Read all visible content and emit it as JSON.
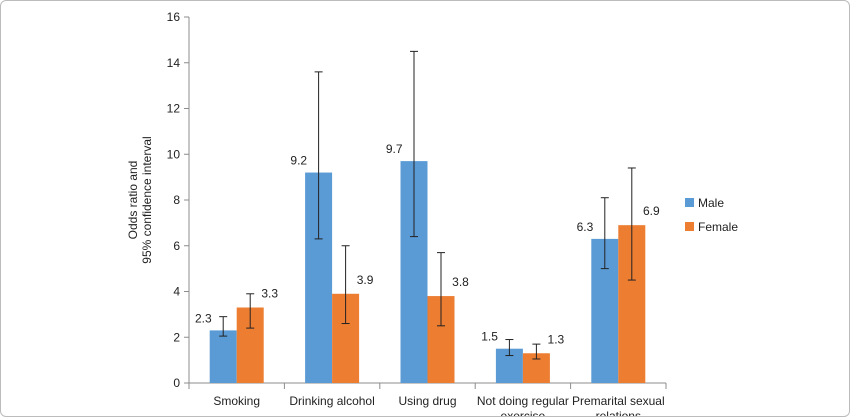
{
  "chart_data": {
    "type": "bar",
    "title": "",
    "ylabel": "Odds ratio and 95% confidence interval",
    "ylabel_lines": [
      "Odds ratio and",
      "95% confidence interval"
    ],
    "xlabel": "",
    "ylim": [
      0,
      16
    ],
    "yticks": [
      0,
      2,
      4,
      6,
      8,
      10,
      12,
      14,
      16
    ],
    "categories": [
      [
        "Smoking"
      ],
      [
        "Drinking alcohol"
      ],
      [
        "Using drug"
      ],
      [
        "Not doing regular",
        "exercise"
      ],
      [
        "Premarital sexual",
        "relations"
      ]
    ],
    "series": [
      {
        "name": "Male",
        "color": "#5b9bd5",
        "values": [
          2.3,
          9.2,
          9.7,
          1.5,
          6.3
        ],
        "ci_low": [
          2.05,
          6.3,
          6.4,
          1.2,
          5.0
        ],
        "ci_high": [
          2.9,
          13.6,
          14.5,
          1.9,
          8.1
        ]
      },
      {
        "name": "Female",
        "color": "#ed7d31",
        "values": [
          3.3,
          3.9,
          3.8,
          1.3,
          6.9
        ],
        "ci_low": [
          2.4,
          2.6,
          2.5,
          1.05,
          4.5
        ],
        "ci_high": [
          3.9,
          6.0,
          5.7,
          1.7,
          9.4
        ]
      }
    ],
    "legend": {
      "position": "right"
    },
    "grid": false
  }
}
